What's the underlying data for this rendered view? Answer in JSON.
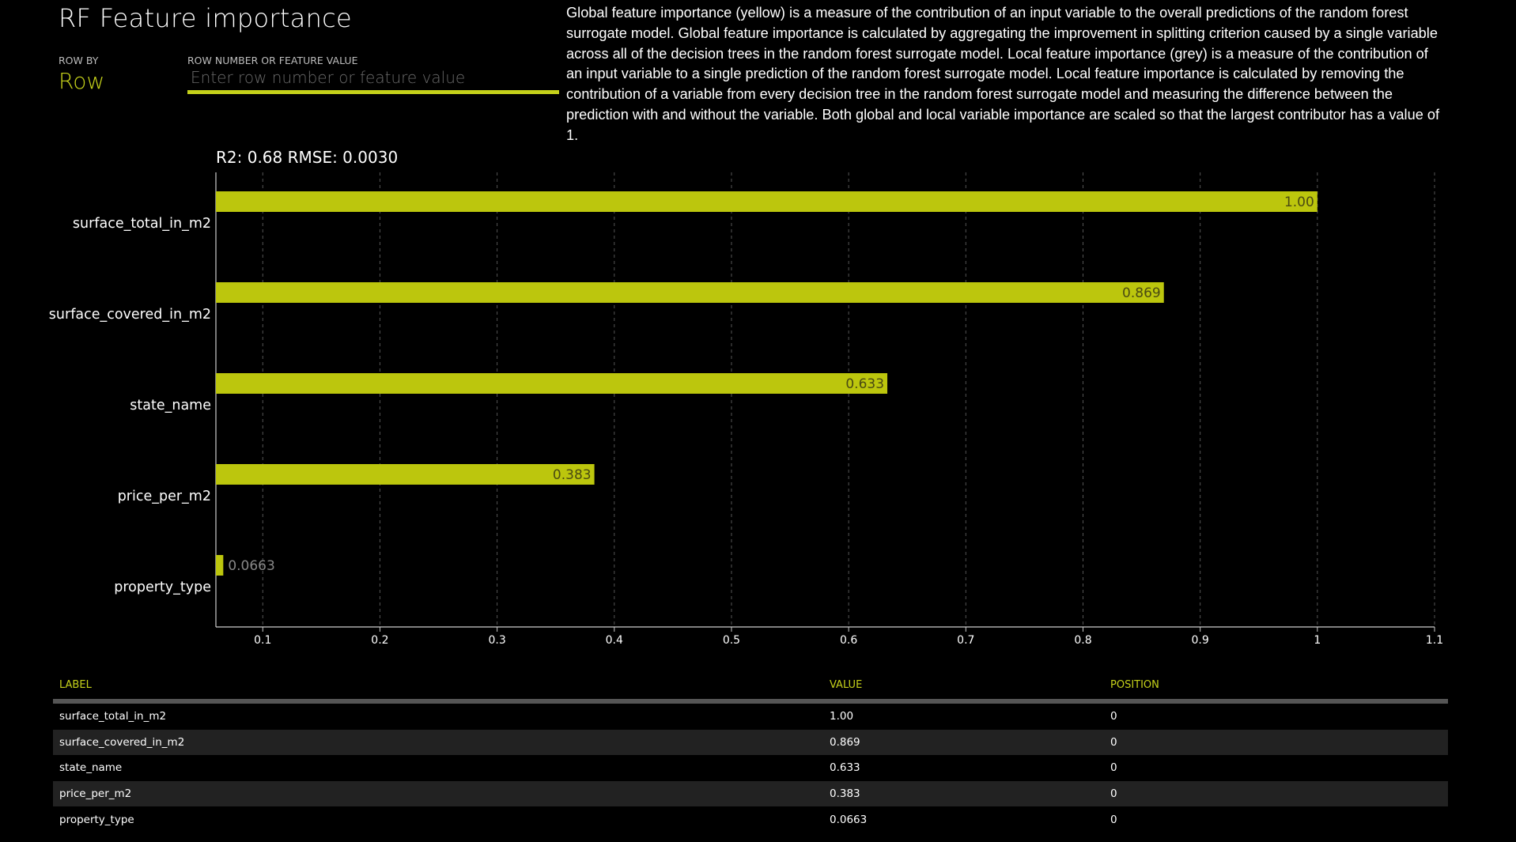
{
  "header": {
    "title": "RF Feature importance",
    "row_by_label": "ROW BY",
    "row_by_value": "Row",
    "row_number_label": "ROW NUMBER OR FEATURE VALUE",
    "row_number_placeholder": "Enter row number or feature value",
    "row_number_value": ""
  },
  "description": "Global feature importance (yellow) is a measure of the contribution of an input variable to the overall predictions of the random forest surrogate model. Global feature importance is calculated by aggregating the improvement in splitting criterion caused by a single variable across all of the decision trees in the random forest surrogate model. Local feature importance (grey) is a measure of the contribution of an input variable to a single prediction of the random forest surrogate model. Local feature importance is calculated by removing the contribution of a variable from every decision tree in the random forest surrogate model and measuring the difference between the prediction with and without the variable. Both global and local variable importance are scaled so that the largest contributor has a value of 1.",
  "metrics": "R2: 0.68 RMSE: 0.0030",
  "colors": {
    "accent": "#c5d11a",
    "bar": "#bcc60d",
    "grid": "#555555",
    "background": "#000000"
  },
  "chart_data": {
    "type": "bar",
    "orientation": "horizontal",
    "categories": [
      "surface_total_in_m2",
      "surface_covered_in_m2",
      "state_name",
      "price_per_m2",
      "property_type"
    ],
    "series": [
      {
        "values": [
          1.0,
          0.869,
          0.633,
          0.383,
          0.0663
        ]
      }
    ],
    "value_labels": [
      "1.00",
      "0.869",
      "0.633",
      "0.383",
      "0.0663"
    ],
    "xticks": [
      "0.1",
      "0.2",
      "0.3",
      "0.4",
      "0.5",
      "0.6",
      "0.7",
      "0.8",
      "0.9",
      "1",
      "1.1"
    ],
    "xlim": [
      0.06,
      1.1
    ],
    "grid": true
  },
  "table": {
    "headers": [
      "LABEL",
      "VALUE",
      "POSITION"
    ],
    "rows": [
      [
        "surface_total_in_m2",
        "1.00",
        "0"
      ],
      [
        "surface_covered_in_m2",
        "0.869",
        "0"
      ],
      [
        "state_name",
        "0.633",
        "0"
      ],
      [
        "price_per_m2",
        "0.383",
        "0"
      ],
      [
        "property_type",
        "0.0663",
        "0"
      ]
    ]
  }
}
